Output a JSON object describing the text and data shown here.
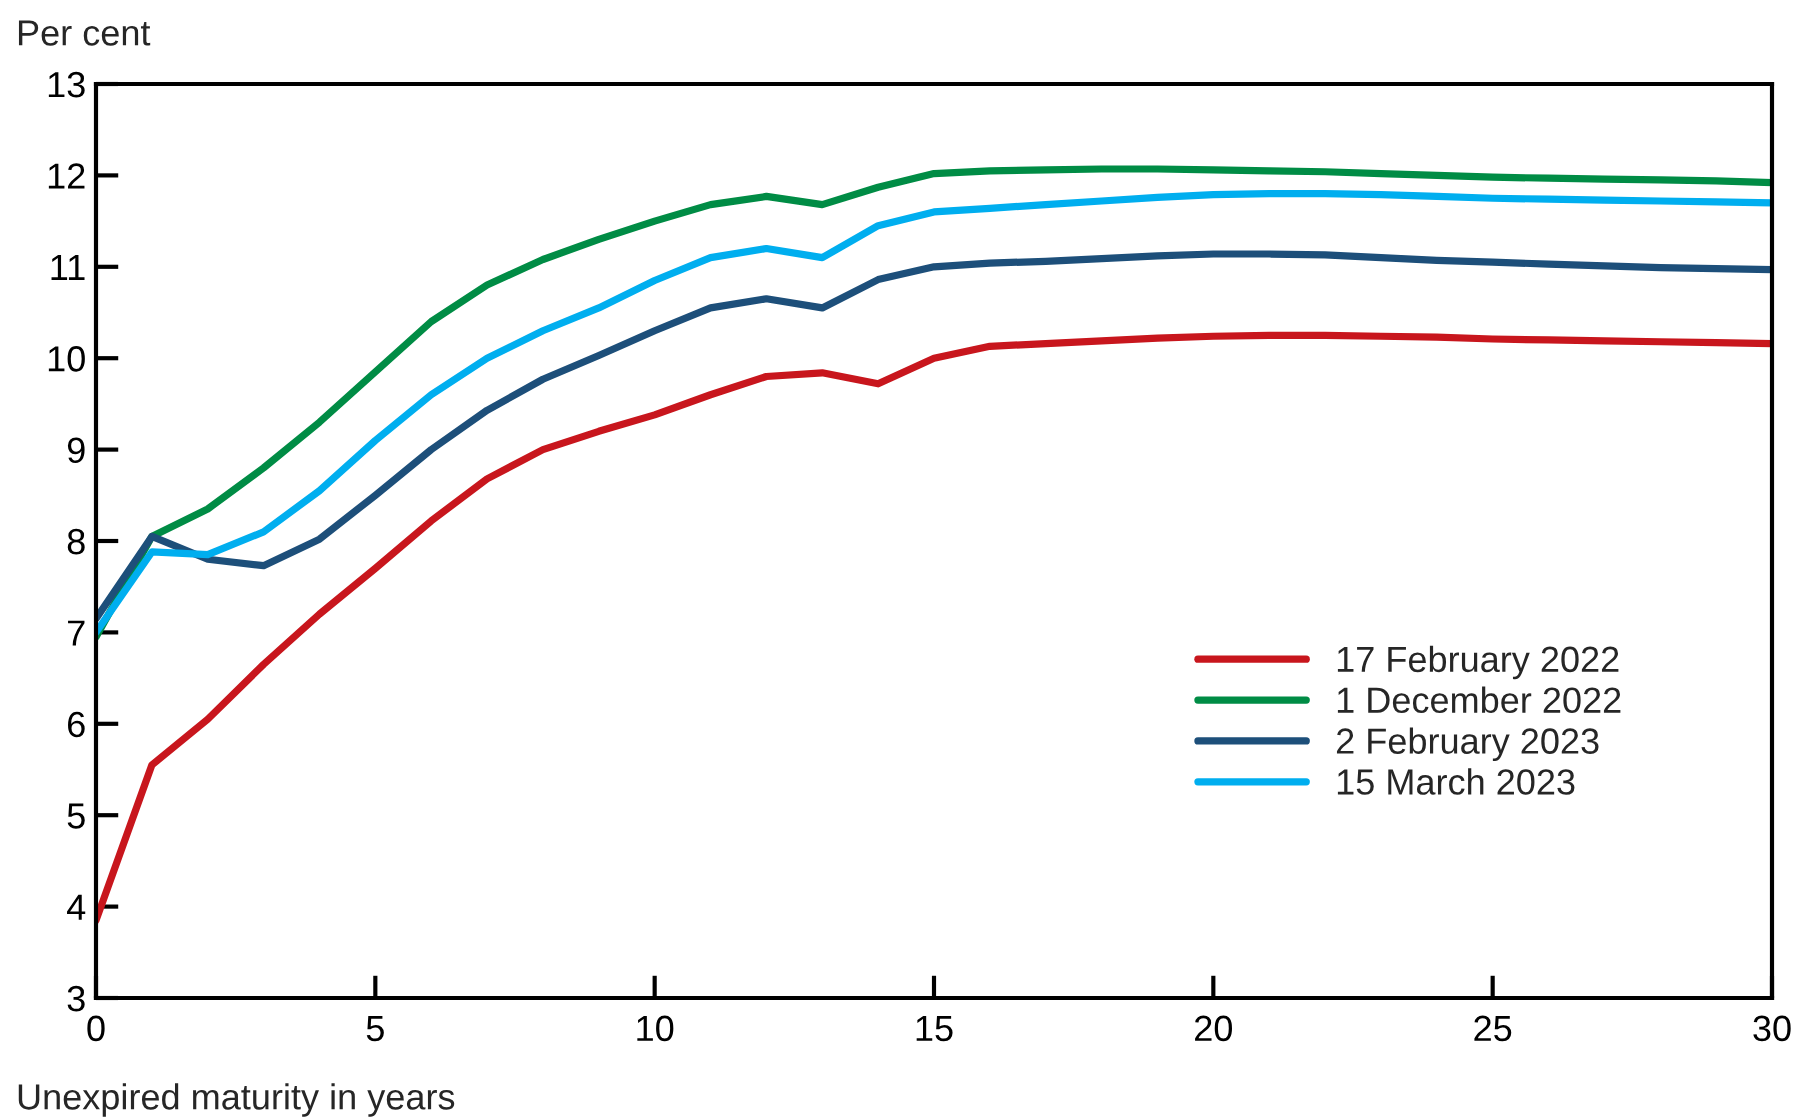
{
  "chart_data": {
    "type": "line",
    "ylabel": "Per cent",
    "xlabel": "Unexpired maturity in years",
    "x": [
      0,
      1,
      2,
      3,
      4,
      5,
      6,
      7,
      8,
      9,
      10,
      11,
      12,
      13,
      14,
      15,
      16,
      17,
      18,
      19,
      20,
      21,
      22,
      23,
      24,
      25,
      26,
      27,
      28,
      29,
      30
    ],
    "xlim": [
      0,
      30
    ],
    "xticks": [
      0,
      5,
      10,
      15,
      20,
      25,
      30
    ],
    "ylim": [
      3,
      13
    ],
    "yticks": [
      3,
      4,
      5,
      6,
      7,
      8,
      9,
      10,
      11,
      12,
      13
    ],
    "grid": false,
    "legend": "right",
    "line_style": "solid",
    "marker": "none",
    "series": [
      {
        "name": "17 February 2022",
        "color": "#c8161d",
        "values": [
          3.85,
          5.55,
          6.05,
          6.65,
          7.2,
          7.7,
          8.22,
          8.68,
          9.0,
          9.2,
          9.38,
          9.6,
          9.8,
          9.84,
          9.72,
          10.0,
          10.13,
          10.16,
          10.19,
          10.22,
          10.24,
          10.25,
          10.25,
          10.24,
          10.23,
          10.21,
          10.2,
          10.19,
          10.18,
          10.17,
          10.16
        ]
      },
      {
        "name": "1 December 2022",
        "color": "#008c45",
        "values": [
          6.95,
          8.05,
          8.35,
          8.8,
          9.3,
          9.85,
          10.4,
          10.8,
          11.08,
          11.3,
          11.5,
          11.68,
          11.77,
          11.68,
          11.87,
          12.02,
          12.05,
          12.06,
          12.07,
          12.07,
          12.06,
          12.05,
          12.04,
          12.02,
          12.0,
          11.98,
          11.97,
          11.96,
          11.95,
          11.94,
          11.92
        ]
      },
      {
        "name": "2 February 2023",
        "color": "#1d4f7a",
        "values": [
          7.15,
          8.05,
          7.8,
          7.73,
          8.02,
          8.5,
          9.0,
          9.43,
          9.77,
          10.03,
          10.3,
          10.55,
          10.65,
          10.55,
          10.86,
          11.0,
          11.04,
          11.06,
          11.09,
          11.12,
          11.14,
          11.14,
          11.13,
          11.1,
          11.07,
          11.05,
          11.03,
          11.01,
          10.99,
          10.98,
          10.97
        ]
      },
      {
        "name": "15 March 2023",
        "color": "#00aeef",
        "values": [
          7.0,
          7.88,
          7.85,
          8.1,
          8.55,
          9.1,
          9.6,
          10.0,
          10.3,
          10.55,
          10.85,
          11.1,
          11.2,
          11.1,
          11.45,
          11.6,
          11.64,
          11.68,
          11.72,
          11.76,
          11.79,
          11.8,
          11.8,
          11.79,
          11.77,
          11.75,
          11.74,
          11.73,
          11.72,
          11.71,
          11.7
        ]
      }
    ]
  }
}
